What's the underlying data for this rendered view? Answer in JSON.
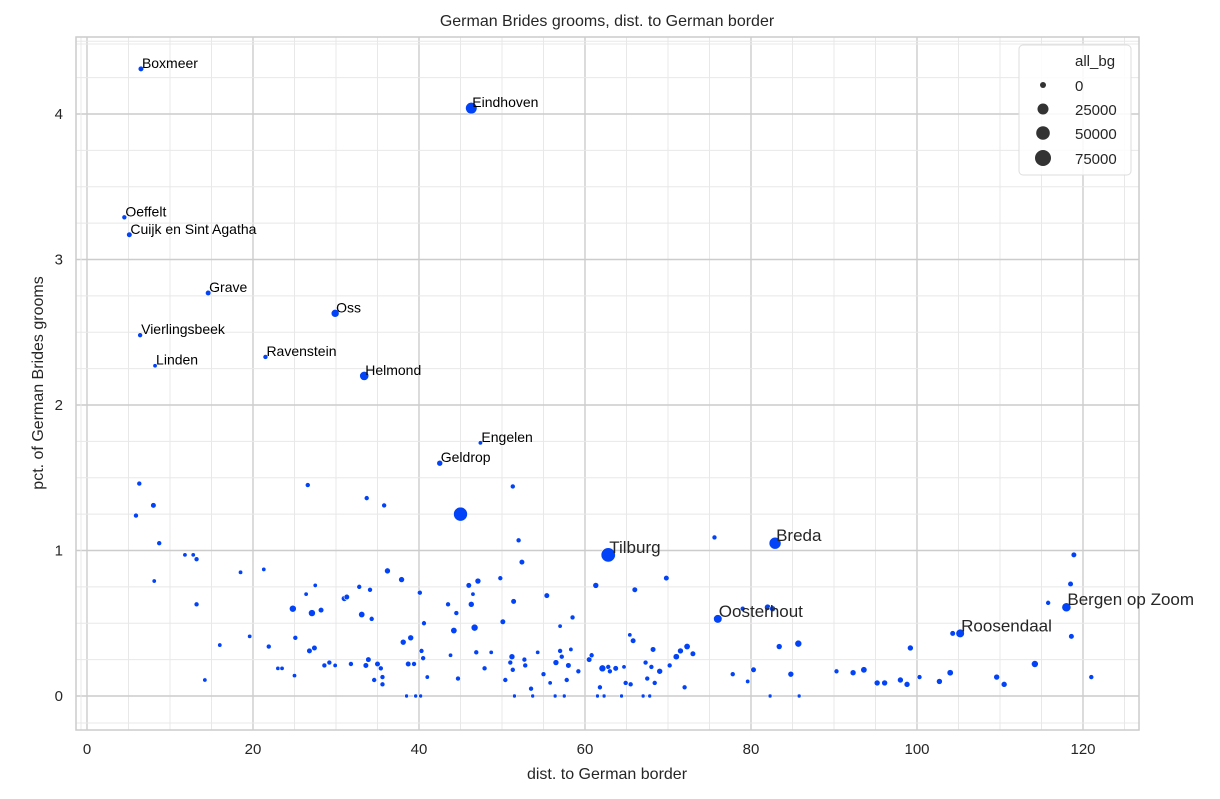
{
  "chart_data": {
    "type": "scatter",
    "title": "German Brides grooms, dist. to German border",
    "xlabel": "dist. to German border",
    "ylabel": "pct. of German Brides grooms",
    "xlim": [
      -1.3,
      126.8
    ],
    "ylim": [
      -0.23,
      4.5
    ],
    "xticks": [
      0,
      20,
      40,
      60,
      80,
      100,
      120
    ],
    "yticks": [
      0,
      1,
      2,
      3,
      4
    ],
    "grid": true,
    "minor_grid": true,
    "marker_color": "#0343f7",
    "legend": {
      "title": "all_bg",
      "position": "upper right",
      "entries": [
        {
          "label": "0",
          "r": 3.0
        },
        {
          "label": "25000",
          "r": 5.5
        },
        {
          "label": "50000",
          "r": 6.8
        },
        {
          "label": "75000",
          "r": 8.0
        }
      ]
    },
    "labeled_points": [
      {
        "name": "Boxmeer",
        "x": 6.5,
        "y": 4.31,
        "r": 2.8,
        "big": false
      },
      {
        "name": "Eindhoven",
        "x": 46.3,
        "y": 4.04,
        "r": 5.8,
        "big": false
      },
      {
        "name": "Oeffelt",
        "x": 4.5,
        "y": 3.29,
        "r": 2.5,
        "big": false
      },
      {
        "name": "Cuijk en Sint Agatha",
        "x": 5.1,
        "y": 3.17,
        "r": 2.8,
        "big": false
      },
      {
        "name": "Grave",
        "x": 14.6,
        "y": 2.77,
        "r": 2.8,
        "big": false
      },
      {
        "name": "Oss",
        "x": 29.9,
        "y": 2.63,
        "r": 4.0,
        "big": false
      },
      {
        "name": "Vierlingsbeek",
        "x": 6.4,
        "y": 2.48,
        "r": 2.5,
        "big": false
      },
      {
        "name": "Ravenstein",
        "x": 21.5,
        "y": 2.33,
        "r": 2.5,
        "big": false
      },
      {
        "name": "Linden",
        "x": 8.2,
        "y": 2.27,
        "r": 2.2,
        "big": false
      },
      {
        "name": "Helmond",
        "x": 33.4,
        "y": 2.2,
        "r": 4.6,
        "big": false
      },
      {
        "name": "Engelen",
        "x": 47.4,
        "y": 1.74,
        "r": 2.2,
        "big": false
      },
      {
        "name": "Geldrop",
        "x": 42.5,
        "y": 1.6,
        "r": 3.0,
        "big": false
      },
      {
        "name": "Tilburg",
        "x": 62.8,
        "y": 0.97,
        "r": 7.2,
        "big": true
      },
      {
        "name": "Breda",
        "x": 82.9,
        "y": 1.05,
        "r": 6.0,
        "big": true
      },
      {
        "name": "Oosterhout",
        "x": 76.0,
        "y": 0.53,
        "r": 4.3,
        "big": true
      },
      {
        "name": "Roosendaal",
        "x": 105.2,
        "y": 0.43,
        "r": 4.3,
        "big": true
      },
      {
        "name": "Bergen op Zoom",
        "x": 118.0,
        "y": 0.61,
        "r": 4.6,
        "big": true
      }
    ],
    "points": [
      [
        6.3,
        1.46,
        2.5
      ],
      [
        8.0,
        1.31,
        2.8
      ],
      [
        5.9,
        1.24,
        2.5
      ],
      [
        8.7,
        1.05,
        2.5
      ],
      [
        8.1,
        0.79,
        2.2
      ],
      [
        11.8,
        0.97,
        2.2
      ],
      [
        12.8,
        0.97,
        2.2
      ],
      [
        13.2,
        0.94,
        2.5
      ],
      [
        13.2,
        0.63,
        2.5
      ],
      [
        14.2,
        0.11,
        2.2
      ],
      [
        16.0,
        0.35,
        2.2
      ],
      [
        18.5,
        0.85,
        2.2
      ],
      [
        19.6,
        0.41,
        2.2
      ],
      [
        21.3,
        0.87,
        2.2
      ],
      [
        21.9,
        0.34,
        2.5
      ],
      [
        23.0,
        0.19,
        2.2
      ],
      [
        23.5,
        0.19,
        2.2
      ],
      [
        24.8,
        0.6,
        3.5
      ],
      [
        25.1,
        0.4,
        2.5
      ],
      [
        25.0,
        0.14,
        2.2
      ],
      [
        26.4,
        0.7,
        2.2
      ],
      [
        26.6,
        1.45,
        2.5
      ],
      [
        26.8,
        0.31,
        2.8
      ],
      [
        27.1,
        0.57,
        3.5
      ],
      [
        27.4,
        0.33,
        2.8
      ],
      [
        27.5,
        0.76,
        2.2
      ],
      [
        28.2,
        0.59,
        2.8
      ],
      [
        28.6,
        0.21,
        2.5
      ],
      [
        29.2,
        0.23,
        2.5
      ],
      [
        29.9,
        0.21,
        2.2
      ],
      [
        31.0,
        0.67,
        3.0
      ],
      [
        31.3,
        0.68,
        2.8
      ],
      [
        31.8,
        0.22,
        2.5
      ],
      [
        32.8,
        0.75,
        2.5
      ],
      [
        33.1,
        0.56,
        3.2
      ],
      [
        33.6,
        0.21,
        2.8
      ],
      [
        33.7,
        1.36,
        2.5
      ],
      [
        33.9,
        0.25,
        2.8
      ],
      [
        34.1,
        0.73,
        2.5
      ],
      [
        34.3,
        0.53,
        2.5
      ],
      [
        34.6,
        0.11,
        2.5
      ],
      [
        35.0,
        0.22,
        2.8
      ],
      [
        35.4,
        0.19,
        2.5
      ],
      [
        35.6,
        0.13,
        2.5
      ],
      [
        35.6,
        0.08,
        2.5
      ],
      [
        35.8,
        1.31,
        2.5
      ],
      [
        36.2,
        0.86,
        3.0
      ],
      [
        37.9,
        0.8,
        3.0
      ],
      [
        38.1,
        0.37,
        3.0
      ],
      [
        38.5,
        0.0,
        2.0
      ],
      [
        38.7,
        0.22,
        2.8
      ],
      [
        39.0,
        0.4,
        3.0
      ],
      [
        39.4,
        0.22,
        2.5
      ],
      [
        39.6,
        0.0,
        2.0
      ],
      [
        40.1,
        0.71,
        2.5
      ],
      [
        40.2,
        0.0,
        2.0
      ],
      [
        40.3,
        0.31,
        2.5
      ],
      [
        40.5,
        0.26,
        2.5
      ],
      [
        40.6,
        0.5,
        2.5
      ],
      [
        41.0,
        0.13,
        2.2
      ],
      [
        43.5,
        0.63,
        2.5
      ],
      [
        43.8,
        0.28,
        2.2
      ],
      [
        44.5,
        0.57,
        2.5
      ],
      [
        44.2,
        0.45,
        3.2
      ],
      [
        44.7,
        0.12,
        2.5
      ],
      [
        45.0,
        1.25,
        7.0
      ],
      [
        46.0,
        0.76,
        2.8
      ],
      [
        46.3,
        0.63,
        3.0
      ],
      [
        46.5,
        0.7,
        2.2
      ],
      [
        46.7,
        0.47,
        3.5
      ],
      [
        46.9,
        0.3,
        2.5
      ],
      [
        47.1,
        0.79,
        3.0
      ],
      [
        47.9,
        0.19,
        2.5
      ],
      [
        48.7,
        0.3,
        2.2
      ],
      [
        49.8,
        0.81,
        2.5
      ],
      [
        50.1,
        0.51,
        2.8
      ],
      [
        50.4,
        0.11,
        2.5
      ],
      [
        51.0,
        0.23,
        2.5
      ],
      [
        51.2,
        0.27,
        3.0
      ],
      [
        51.3,
        1.44,
        2.5
      ],
      [
        51.4,
        0.65,
        2.8
      ],
      [
        51.3,
        0.18,
        2.5
      ],
      [
        51.5,
        0.0,
        2.0
      ],
      [
        52.0,
        1.07,
        2.5
      ],
      [
        52.4,
        0.92,
        2.8
      ],
      [
        52.7,
        0.25,
        2.5
      ],
      [
        52.8,
        0.21,
        2.5
      ],
      [
        53.5,
        0.05,
        2.5
      ],
      [
        53.7,
        0.0,
        2.0
      ],
      [
        54.3,
        0.3,
        2.2
      ],
      [
        55.0,
        0.15,
        2.5
      ],
      [
        55.4,
        0.69,
        2.8
      ],
      [
        55.8,
        0.09,
        2.2
      ],
      [
        56.4,
        0.0,
        2.0
      ],
      [
        56.5,
        0.23,
        3.0
      ],
      [
        57.0,
        0.48,
        2.2
      ],
      [
        57.0,
        0.31,
        2.5
      ],
      [
        57.2,
        0.27,
        2.5
      ],
      [
        57.5,
        0.0,
        2.0
      ],
      [
        57.8,
        0.11,
        2.5
      ],
      [
        58.0,
        0.21,
        2.8
      ],
      [
        58.3,
        0.32,
        2.2
      ],
      [
        58.5,
        0.54,
        2.5
      ],
      [
        59.2,
        0.17,
        2.5
      ],
      [
        60.5,
        0.25,
        2.8
      ],
      [
        60.8,
        0.28,
        2.5
      ],
      [
        61.3,
        0.76,
        3.0
      ],
      [
        61.5,
        0.0,
        2.0
      ],
      [
        61.8,
        0.06,
        2.5
      ],
      [
        62.1,
        0.19,
        3.5
      ],
      [
        62.3,
        0.0,
        2.0
      ],
      [
        62.8,
        0.2,
        2.5
      ],
      [
        63.0,
        0.17,
        2.5
      ],
      [
        63.7,
        0.19,
        2.8
      ],
      [
        64.4,
        0.0,
        2.0
      ],
      [
        64.7,
        0.2,
        2.2
      ],
      [
        64.9,
        0.09,
        2.5
      ],
      [
        65.4,
        0.42,
        2.2
      ],
      [
        65.5,
        0.08,
        2.5
      ],
      [
        65.8,
        0.38,
        2.8
      ],
      [
        66.0,
        0.73,
        2.8
      ],
      [
        67.0,
        0.0,
        2.0
      ],
      [
        67.3,
        0.23,
        2.5
      ],
      [
        67.5,
        0.12,
        2.5
      ],
      [
        67.8,
        0.0,
        2.0
      ],
      [
        68.0,
        0.2,
        2.5
      ],
      [
        68.2,
        0.32,
        2.8
      ],
      [
        68.4,
        0.09,
        2.5
      ],
      [
        69.0,
        0.17,
        3.0
      ],
      [
        69.8,
        0.81,
        2.8
      ],
      [
        70.2,
        0.21,
        2.5
      ],
      [
        71.0,
        0.27,
        3.2
      ],
      [
        71.5,
        0.31,
        3.0
      ],
      [
        72.0,
        0.06,
        2.5
      ],
      [
        72.3,
        0.34,
        3.2
      ],
      [
        73.0,
        0.29,
        2.8
      ],
      [
        75.6,
        1.09,
        2.5
      ],
      [
        77.8,
        0.15,
        2.5
      ],
      [
        79.0,
        0.6,
        2.5
      ],
      [
        79.6,
        0.1,
        2.2
      ],
      [
        80.3,
        0.18,
        2.8
      ],
      [
        82.0,
        0.61,
        3.2
      ],
      [
        82.3,
        0.0,
        2.0
      ],
      [
        82.6,
        0.6,
        3.0
      ],
      [
        83.4,
        0.34,
        3.0
      ],
      [
        84.8,
        0.15,
        3.0
      ],
      [
        85.7,
        0.36,
        3.5
      ],
      [
        85.8,
        0.0,
        2.0
      ],
      [
        90.3,
        0.17,
        2.5
      ],
      [
        92.3,
        0.16,
        3.0
      ],
      [
        93.6,
        0.18,
        3.2
      ],
      [
        95.2,
        0.09,
        3.0
      ],
      [
        96.1,
        0.09,
        3.0
      ],
      [
        98.0,
        0.11,
        3.0
      ],
      [
        98.8,
        0.08,
        3.0
      ],
      [
        99.2,
        0.33,
        3.0
      ],
      [
        100.3,
        0.13,
        2.5
      ],
      [
        102.7,
        0.1,
        3.0
      ],
      [
        104.0,
        0.16,
        3.2
      ],
      [
        104.3,
        0.43,
        2.8
      ],
      [
        109.6,
        0.13,
        3.0
      ],
      [
        110.5,
        0.08,
        3.0
      ],
      [
        114.2,
        0.22,
        3.5
      ],
      [
        115.8,
        0.64,
        2.5
      ],
      [
        118.5,
        0.77,
        2.8
      ],
      [
        118.9,
        0.97,
        2.8
      ],
      [
        118.6,
        0.41,
        2.8
      ],
      [
        121.0,
        0.13,
        2.5
      ]
    ]
  }
}
